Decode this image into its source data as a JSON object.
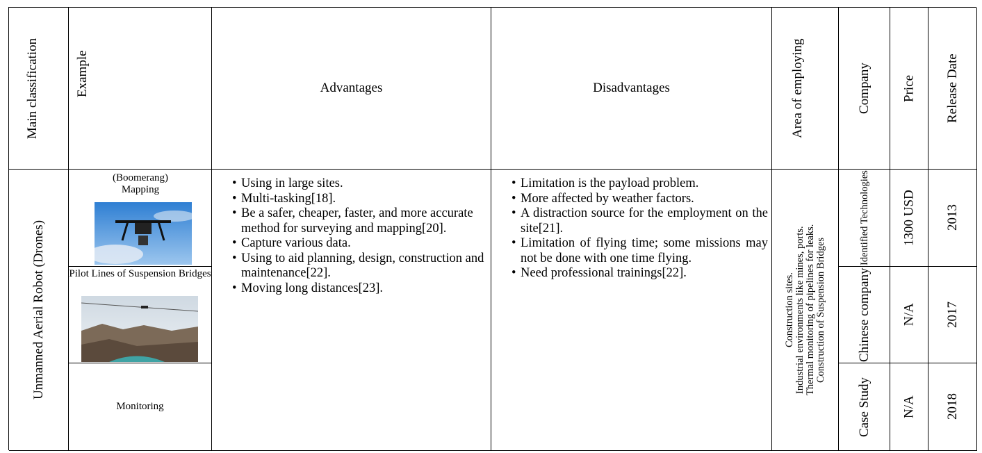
{
  "header": {
    "main_classification": "Main classification",
    "example": "Example",
    "advantages": "Advantages",
    "disadvantages": "Disadvantages",
    "area": "Area of employing",
    "company": "Company",
    "price": "Price",
    "release_date": "Release Date"
  },
  "body": {
    "main_classification": "Unmanned Aerial Robot (Drones)",
    "examples": [
      "(Boomerang) Mapping",
      "Pilot Lines of Suspension Bridges",
      "Monitoring"
    ],
    "advantages": [
      "Using in large sites.",
      "Multi-tasking[18].",
      "Be a safer, cheaper, faster, and more accurate method for surveying and mapping[20].",
      "Capture various data.",
      "Using to aid planning, design, construction and maintenance[22].",
      "Moving long distances[23]."
    ],
    "disadvantages": [
      "Limitation is the payload problem.",
      "More affected by weather factors.",
      "A distraction source for the employment on the site[21].",
      "Limitation of flying time; some missions may not be done with one time flying.",
      "Need professional trainings[22]."
    ],
    "area": [
      "Construction sites.",
      "Industrial environments like mines, ports.",
      "Thermal monitoring of pipelines for leaks.",
      "Construction of Suspension Bridges"
    ],
    "rows": [
      {
        "company": "Identified Technologies",
        "price": "1300 USD",
        "release_date": "2013"
      },
      {
        "company": "Chinese company",
        "price": "N/A",
        "release_date": "2017"
      },
      {
        "company": "Case Study",
        "price": "N/A",
        "release_date": "2018"
      }
    ]
  }
}
